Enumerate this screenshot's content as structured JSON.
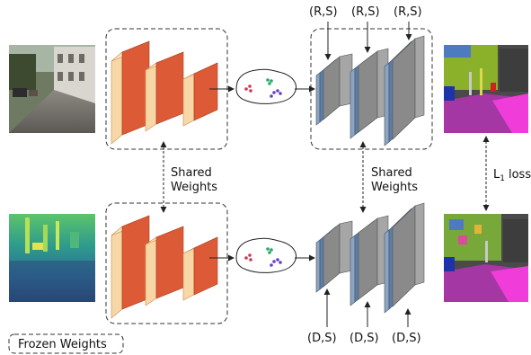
{
  "labels": {
    "shared_weights_line1": "Shared",
    "shared_weights_line2": "Weights",
    "rs": "(R,S)",
    "ds": "(D,S)",
    "loss_main": "L",
    "loss_sub": "1",
    "loss_word": "loss",
    "legend": "Frozen Weights"
  },
  "colors": {
    "encoder_front": "#dd5a36",
    "encoder_side": "#f7d7a6",
    "decoder_front": "#5b7ea6",
    "decoder_side": "#8fa3bd",
    "decoder_gray": "#888888",
    "frozen_border": "#333333",
    "embed_dot_red": "#d9324a",
    "embed_dot_green": "#2aa86a",
    "embed_dot_purple": "#6b3fc5"
  },
  "images": {
    "rgb_input": "street-photo",
    "depth_input": "depth-map",
    "seg_output_top": "segmentation-map",
    "seg_output_bottom": "segmentation-map"
  }
}
